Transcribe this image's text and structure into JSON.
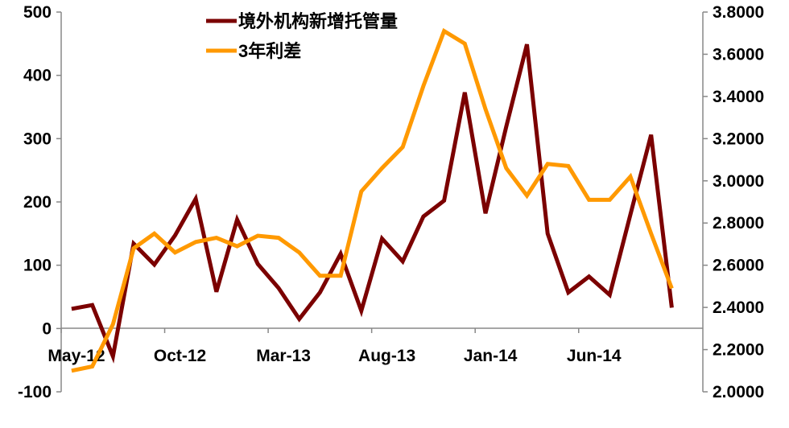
{
  "chart_data": {
    "type": "line",
    "title": "",
    "xlabel": "",
    "ylabel": "",
    "x": [
      "May-12",
      "Jun-12",
      "Jul-12",
      "Aug-12",
      "Sep-12",
      "Oct-12",
      "Nov-12",
      "Dec-12",
      "Jan-13",
      "Feb-13",
      "Mar-13",
      "Apr-13",
      "May-13",
      "Jun-13",
      "Jul-13",
      "Aug-13",
      "Sep-13",
      "Oct-13",
      "Nov-13",
      "Dec-13",
      "Jan-14",
      "Feb-14",
      "Mar-14",
      "Apr-14",
      "May-14",
      "Jun-14",
      "Jul-14",
      "Aug-14",
      "Sep-14",
      "Oct-14",
      "Nov-14"
    ],
    "x_tick_labels": [
      "May-12",
      "Oct-12",
      "Mar-13",
      "Aug-13",
      "Jan-14",
      "Jun-14"
    ],
    "y_left": {
      "lim": [
        -100,
        500
      ],
      "ticks": [
        "500",
        "400",
        "300",
        "200",
        "100",
        "0",
        "-100"
      ]
    },
    "y_right": {
      "lim": [
        2.0,
        3.8
      ],
      "ticks": [
        "3.8000",
        "3.6000",
        "3.4000",
        "3.2000",
        "3.0000",
        "2.8000",
        "2.6000",
        "2.4000",
        "2.2000",
        "2.0000"
      ]
    },
    "grid": false,
    "legend_position": "top-center",
    "series": [
      {
        "name": "境外机构新增托管量",
        "axis": "left",
        "color": "#7b0000",
        "values": [
          31,
          37,
          -44,
          134,
          101,
          147,
          205,
          58,
          172,
          102,
          64,
          15,
          57,
          118,
          28,
          142,
          106,
          177,
          202,
          373,
          182,
          319,
          449,
          150,
          57,
          82,
          53,
          180,
          306,
          33,
          null
        ]
      },
      {
        "name": "3年利差",
        "axis": "right",
        "color": "#ff9900",
        "values": [
          2.1,
          2.12,
          2.32,
          2.68,
          2.75,
          2.66,
          2.71,
          2.73,
          2.69,
          2.74,
          2.73,
          2.66,
          2.55,
          2.55,
          2.95,
          3.06,
          3.16,
          3.45,
          3.71,
          3.65,
          3.34,
          3.06,
          2.93,
          3.08,
          3.07,
          2.91,
          2.91,
          3.02,
          2.75,
          2.49,
          null
        ]
      }
    ]
  }
}
